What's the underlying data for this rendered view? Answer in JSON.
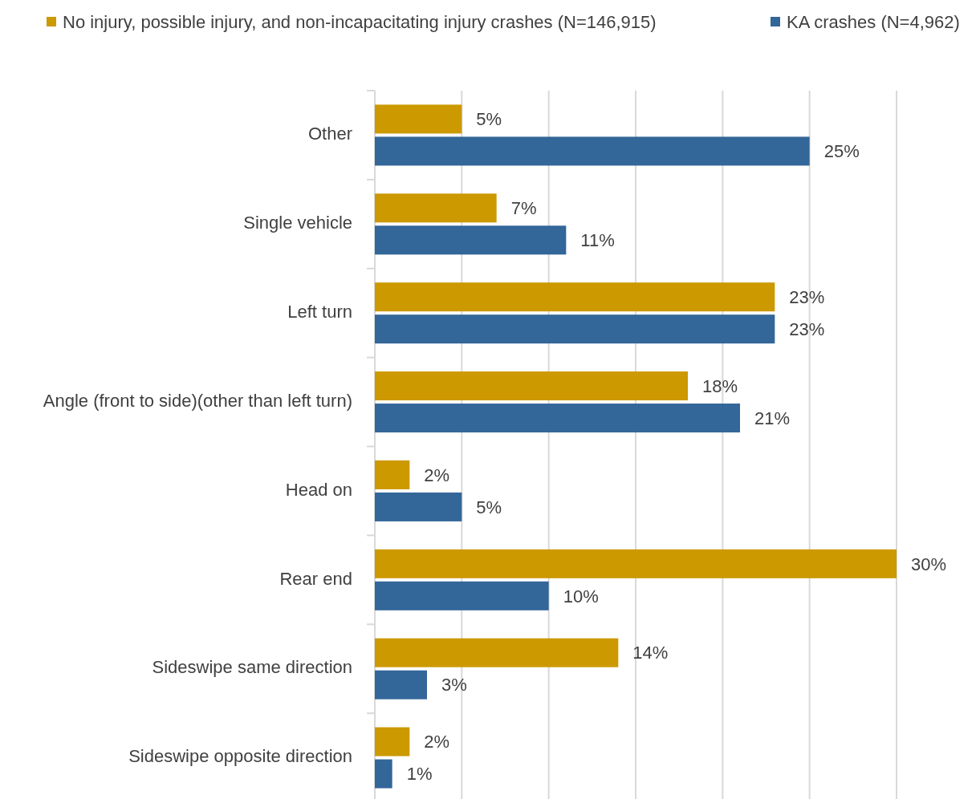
{
  "chart_data": {
    "type": "bar",
    "orientation": "horizontal",
    "categories": [
      "Other",
      "Single vehicle",
      "Left turn",
      "Angle (front to side)(other than left turn)",
      "Head on",
      "Rear end",
      "Sideswipe same direction",
      "Sideswipe opposite direction"
    ],
    "series": [
      {
        "name": "No injury, possible injury, and non-incapacitating injury crashes (N=146,915)",
        "color": "#cc9900",
        "values": [
          5,
          7,
          23,
          18,
          2,
          30,
          14,
          2
        ],
        "value_labels": [
          "5%",
          "7%",
          "23%",
          "18%",
          "2%",
          "30%",
          "14%",
          "2%"
        ]
      },
      {
        "name": "KA crashes (N=4,962)",
        "color": "#336699",
        "values": [
          25,
          11,
          23,
          21,
          5,
          10,
          3,
          1
        ],
        "value_labels": [
          "25%",
          "11%",
          "23%",
          "21%",
          "5%",
          "10%",
          "3%",
          "1%"
        ]
      }
    ],
    "xlim": [
      0,
      30
    ],
    "xticks": [
      {
        "value": 0,
        "label": null
      },
      {
        "value": 5,
        "label": null
      },
      {
        "value": 10,
        "label": null
      },
      {
        "value": 15,
        "label": null
      },
      {
        "value": 20,
        "label": null
      },
      {
        "value": 25,
        "label": null
      },
      {
        "value": 30,
        "label": null
      }
    ],
    "tick_labels": "y",
    "grid": "x",
    "legend": "top"
  }
}
